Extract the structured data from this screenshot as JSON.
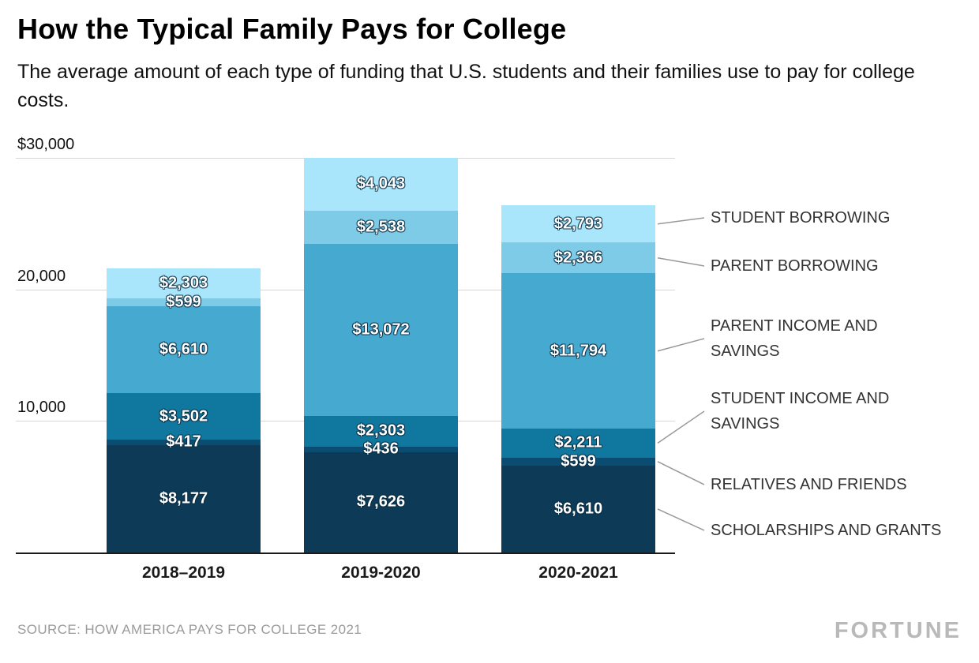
{
  "header": {
    "title": "How the Typical Family Pays for College",
    "subtitle": "The average amount of each type of funding that U.S. students and their families use to pay for college costs."
  },
  "footer": {
    "source": "SOURCE: HOW AMERICA PAYS FOR COLLEGE 2021",
    "brand": "FORTUNE"
  },
  "chart_data": {
    "type": "bar",
    "stacked": true,
    "title": "How the Typical Family Pays for College",
    "categories": [
      "2018–2019",
      "2019-2020",
      "2020-2021"
    ],
    "series": [
      {
        "name": "SCHOLARSHIPS AND GRANTS",
        "color": "#0d3a56",
        "values": [
          8177,
          7626,
          6610
        ],
        "labels": [
          "$8,177",
          "$7,626",
          "$6,610"
        ]
      },
      {
        "name": "RELATIVES AND FRIENDS",
        "color": "#0b4d72",
        "values": [
          417,
          436,
          599
        ],
        "labels": [
          "$417",
          "$436",
          "$599"
        ]
      },
      {
        "name": "STUDENT INCOME AND SAVINGS",
        "color": "#10789f",
        "values": [
          3502,
          2303,
          2211
        ],
        "labels": [
          "$3,502",
          "$2,303",
          "$2,211"
        ]
      },
      {
        "name": "PARENT INCOME AND SAVINGS",
        "color": "#46a9d0",
        "values": [
          6610,
          13072,
          11794
        ],
        "labels": [
          "$6,610",
          "$13,072",
          "$11,794"
        ]
      },
      {
        "name": "PARENT BORROWING",
        "color": "#7ecbe8",
        "values": [
          599,
          2538,
          2366
        ],
        "labels": [
          "$599",
          "$2,538",
          "$2,366"
        ]
      },
      {
        "name": "STUDENT BORROWING",
        "color": "#a9e6fb",
        "values": [
          2303,
          4043,
          2793
        ],
        "labels": [
          "$2,303",
          "$4,043",
          "$2,793"
        ]
      }
    ],
    "y_axis": {
      "ticks": [
        10000,
        20000,
        30000
      ],
      "tick_labels": [
        "10,000",
        "20,000",
        "$30,000"
      ],
      "max": 30000
    },
    "legend_position": "right",
    "grid": true
  }
}
